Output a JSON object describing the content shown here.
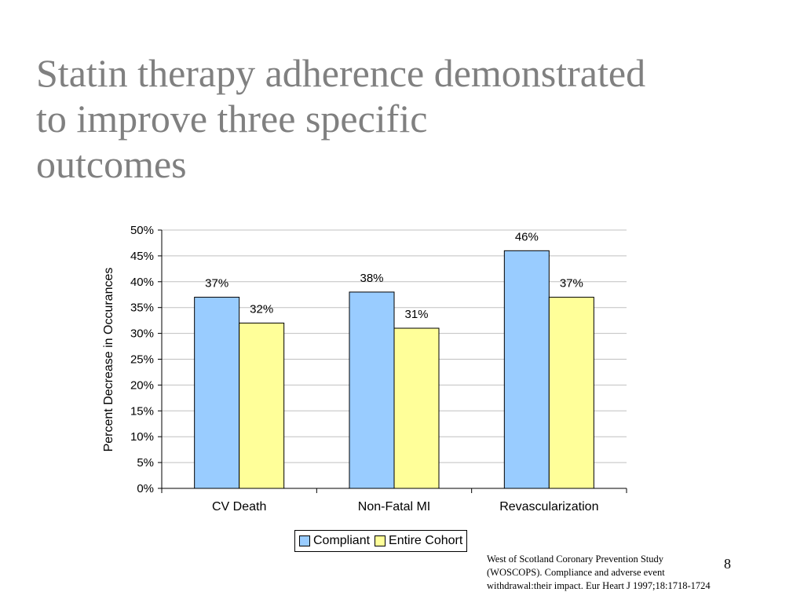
{
  "slide": {
    "title_lines": [
      "Statin therapy adherence demonstrated",
      "to improve three specific",
      "outcomes"
    ],
    "citation_lines": [
      "West of Scotland Coronary Prevention Study",
      "(WOSCOPS). Compliance and adverse event",
      "withdrawal:their impact. Eur Heart J 1997;18:1718-1724"
    ],
    "page_number": "8"
  },
  "chart_data": {
    "type": "bar",
    "categories": [
      "CV Death",
      "Non-Fatal MI",
      "Revascularization"
    ],
    "series": [
      {
        "name": "Compliant",
        "values": [
          37,
          38,
          46
        ],
        "labels": [
          "37%",
          "38%",
          "46%"
        ],
        "color": "#99CCFF"
      },
      {
        "name": "Entire Cohort",
        "values": [
          32,
          31,
          37
        ],
        "labels": [
          "32%",
          "31%",
          "37%"
        ],
        "color": "#FFFF99"
      }
    ],
    "title": "",
    "xlabel": "",
    "ylabel": "Percent Decrease in Occurances",
    "ylim": [
      0,
      50
    ],
    "yticks": [
      0,
      5,
      10,
      15,
      20,
      25,
      30,
      35,
      40,
      45,
      50
    ],
    "ytick_labels": [
      "0%",
      "5%",
      "10%",
      "15%",
      "20%",
      "25%",
      "30%",
      "35%",
      "40%",
      "45%",
      "50%"
    ],
    "grid": true,
    "legend_position": "bottom",
    "gridline_color": "#C0C0C0"
  }
}
